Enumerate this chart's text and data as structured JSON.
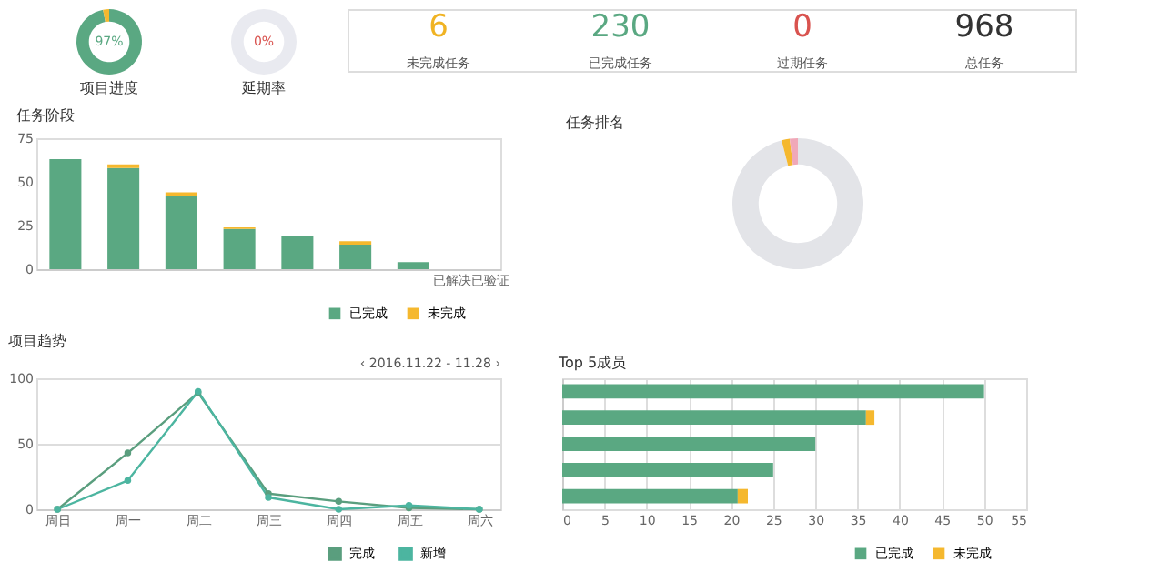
{
  "chart_data": [
    {
      "type": "donut",
      "title": "项目进度",
      "categories": [
        null,
        null
      ],
      "values": [
        97,
        3
      ],
      "colors": [
        "#5aa882",
        "#f5b82e"
      ],
      "annotations": [
        "97%"
      ]
    },
    {
      "type": "donut",
      "title": "延期率",
      "categories": [
        null,
        null
      ],
      "values": [
        0,
        100
      ],
      "colors": [
        "#d9534f",
        "#e9eaf0"
      ],
      "annotations": [
        "0%"
      ]
    },
    {
      "type": "other",
      "categories": [
        "未完成任务",
        "已完成任务",
        "过期任务",
        "总任务"
      ],
      "value_labels": [
        "6",
        "230",
        "0",
        "968"
      ],
      "colors": [
        "#f0b323",
        "#5aa882",
        "#d9534f",
        "#333333"
      ]
    },
    {
      "type": "bar",
      "title": "任务阶段",
      "stacked": true,
      "categories": [
        null,
        null,
        null,
        null,
        null,
        null,
        null,
        "已解决已验证"
      ],
      "series": [
        {
          "name": "已完成",
          "color": "#5aa882",
          "values": [
            63,
            58,
            42,
            23,
            19,
            14,
            4,
            0
          ]
        },
        {
          "name": "未完成",
          "color": "#f5b82e",
          "values": [
            0,
            2,
            2,
            1,
            0,
            2,
            0,
            0
          ]
        }
      ],
      "ylim": [
        0,
        75
      ],
      "yticks": [
        0,
        25,
        50,
        75
      ],
      "legend": "bottom right",
      "grid": false
    },
    {
      "type": "donut",
      "title": "任务排名",
      "categories": [
        null,
        null,
        null
      ],
      "values": [
        96,
        2,
        2
      ],
      "colors": [
        "#e3e4e8",
        "#f5b82e",
        "#f0a8b8"
      ]
    },
    {
      "type": "line",
      "title": "项目趋势",
      "categories": [
        "周日",
        "周一",
        "周二",
        "周三",
        "周四",
        "周五",
        "周六"
      ],
      "series": [
        {
          "name": "完成",
          "color": "#5a9e7e",
          "values": [
            0,
            43,
            89,
            12,
            6,
            1,
            0
          ]
        },
        {
          "name": "新增",
          "color": "#4cb5a0",
          "values": [
            0,
            22,
            90,
            9,
            0,
            3,
            0
          ]
        }
      ],
      "ylim": [
        0,
        100
      ],
      "yticks": [
        0,
        50,
        100
      ],
      "grid": "y",
      "marker": "circle",
      "line_style": "solid",
      "legend": "bottom right",
      "annotations": [
        "‹ 2016.11.22 - 11.28 ›"
      ]
    },
    {
      "type": "bar",
      "title": "Top 5成员",
      "stacked": true,
      "orientation": "horizontal",
      "categories": [
        null,
        null,
        null,
        null,
        null
      ],
      "series": [
        {
          "name": "已完成",
          "color": "#5aa882",
          "values": [
            50,
            36,
            30,
            25,
            20.8
          ]
        },
        {
          "name": "未完成",
          "color": "#f5b82e",
          "values": [
            0,
            1,
            0,
            0,
            1.2
          ]
        }
      ],
      "xlim": [
        0,
        55
      ],
      "xticks": [
        0,
        5,
        10,
        15,
        20,
        25,
        30,
        35,
        40,
        45,
        50,
        55
      ],
      "grid": "x",
      "legend": "bottom right"
    }
  ]
}
